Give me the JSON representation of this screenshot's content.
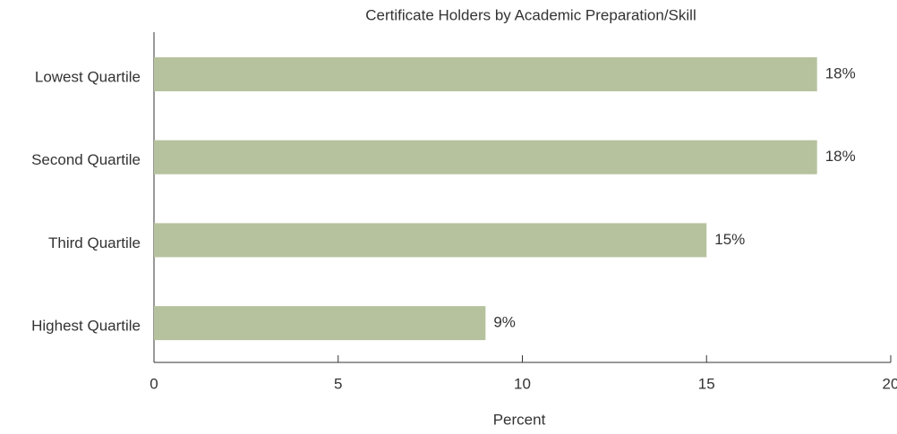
{
  "chart_data": {
    "type": "bar",
    "orientation": "horizontal",
    "title": "Certificate Holders by Academic Preparation/Skill",
    "x_label": "Percent",
    "categories": [
      "Lowest Quartile",
      "Second Quartile",
      "Third Quartile",
      "Highest Quartile"
    ],
    "values": [
      18,
      18,
      15,
      9
    ],
    "value_labels": [
      "18%",
      "18%",
      "15%",
      "9%"
    ],
    "color": "#b5c29d",
    "xlim": [
      0,
      20
    ],
    "xticks": [
      0,
      5,
      10,
      15,
      20
    ],
    "grid": false
  }
}
